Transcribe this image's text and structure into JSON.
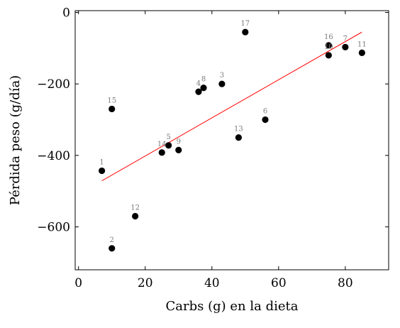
{
  "chart_data": {
    "type": "scatter",
    "xlabel": "Carbs (g) en la dieta",
    "ylabel": "Pérdida peso (g/día)",
    "xlim": [
      -1,
      93
    ],
    "ylim": [
      -720,
      5
    ],
    "x_ticks": [
      0,
      20,
      40,
      60,
      80
    ],
    "y_ticks": [
      0,
      -200,
      -400,
      -600
    ],
    "x_tick_labels": [
      "0",
      "20",
      "40",
      "60",
      "80"
    ],
    "y_tick_labels": [
      "0",
      "−200",
      "−400",
      "−600"
    ],
    "grid": false,
    "points": [
      {
        "label": "1",
        "x": 7,
        "y": -443
      },
      {
        "label": "2",
        "x": 10,
        "y": -660
      },
      {
        "label": "3",
        "x": 43,
        "y": -200
      },
      {
        "label": "4",
        "x": 36,
        "y": -222
      },
      {
        "label": "5",
        "x": 27,
        "y": -372
      },
      {
        "label": "6",
        "x": 56,
        "y": -300
      },
      {
        "label": "7",
        "x": 80,
        "y": -97
      },
      {
        "label": "8",
        "x": 37.5,
        "y": -211
      },
      {
        "label": "9",
        "x": 30,
        "y": -385
      },
      {
        "label": "10",
        "x": 75,
        "y": -120
      },
      {
        "label": "11",
        "x": 85,
        "y": -113
      },
      {
        "label": "12",
        "x": 17,
        "y": -570
      },
      {
        "label": "13",
        "x": 48,
        "y": -350
      },
      {
        "label": "14",
        "x": 25,
        "y": -392
      },
      {
        "label": "15",
        "x": 10,
        "y": -270
      },
      {
        "label": "16",
        "x": 75,
        "y": -92
      },
      {
        "label": "17",
        "x": 50,
        "y": -55
      }
    ],
    "fit_line": {
      "color": "#ff0000",
      "x": [
        7,
        85
      ],
      "y": [
        -471,
        -55
      ]
    },
    "point_color": "#000000",
    "label_color": "#7a7a7a"
  }
}
